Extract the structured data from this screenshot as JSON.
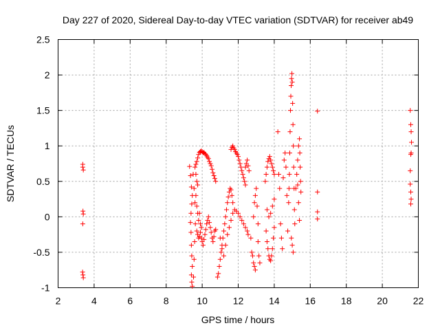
{
  "chart_data": {
    "type": "scatter",
    "title": "Day 227 of 2020, Sidereal Day-to-day VTEC variation (SDTVAR) for receiver ab49",
    "xlabel": "GPS time / hours",
    "ylabel": "SDTVAR / TECUs",
    "xlim": [
      2,
      22
    ],
    "ylim": [
      -1,
      2.5
    ],
    "xticks": [
      2,
      4,
      6,
      8,
      10,
      12,
      14,
      16,
      18,
      20,
      22
    ],
    "yticks": [
      -1,
      -0.5,
      0,
      0.5,
      1,
      1.5,
      2,
      2.5
    ],
    "xtick_labels": [
      "2",
      "4",
      "6",
      "8",
      "10",
      "12",
      "14",
      "16",
      "18",
      "20",
      "22"
    ],
    "ytick_labels": [
      "-1",
      "-0.5",
      "0",
      "0.5",
      "1",
      "1.5",
      "2",
      "2.5"
    ],
    "grid": true,
    "marker": "+",
    "series": [
      {
        "name": "SDTVAR",
        "color": "#ff0000",
        "points": [
          [
            3.37,
            0.74
          ],
          [
            3.37,
            0.7
          ],
          [
            3.4,
            0.66
          ],
          [
            3.38,
            0.08
          ],
          [
            3.4,
            0.04
          ],
          [
            3.37,
            -0.1
          ],
          [
            3.36,
            -0.78
          ],
          [
            3.38,
            -0.82
          ],
          [
            3.4,
            -0.86
          ],
          [
            9.3,
            0.71
          ],
          [
            9.35,
            0.58
          ],
          [
            9.4,
            0.42
          ],
          [
            9.45,
            0.3
          ],
          [
            9.42,
            0.18
          ],
          [
            9.38,
            0.05
          ],
          [
            9.35,
            -0.08
          ],
          [
            9.38,
            -0.22
          ],
          [
            9.4,
            -0.4
          ],
          [
            9.42,
            -0.55
          ],
          [
            9.45,
            -0.7
          ],
          [
            9.4,
            -0.82
          ],
          [
            9.42,
            -0.92
          ],
          [
            9.45,
            -0.98
          ],
          [
            9.5,
            0.6
          ],
          [
            9.55,
            0.4
          ],
          [
            9.6,
            0.2
          ],
          [
            9.62,
            -0.1
          ],
          [
            9.58,
            -0.35
          ],
          [
            9.55,
            -0.6
          ],
          [
            9.52,
            -0.85
          ],
          [
            9.65,
            0.74
          ],
          [
            9.7,
            0.78
          ],
          [
            9.75,
            0.83
          ],
          [
            9.8,
            0.88
          ],
          [
            9.85,
            0.91
          ],
          [
            9.9,
            0.92
          ],
          [
            9.95,
            0.93
          ],
          [
            10.0,
            0.92
          ],
          [
            10.05,
            0.9
          ],
          [
            10.1,
            0.91
          ],
          [
            10.15,
            0.89
          ],
          [
            10.2,
            0.88
          ],
          [
            10.25,
            0.86
          ],
          [
            10.3,
            0.84
          ],
          [
            10.35,
            0.82
          ],
          [
            10.4,
            0.78
          ],
          [
            10.45,
            0.75
          ],
          [
            10.5,
            0.72
          ],
          [
            10.55,
            0.67
          ],
          [
            10.6,
            0.62
          ],
          [
            10.65,
            0.58
          ],
          [
            10.7,
            0.54
          ],
          [
            10.75,
            0.5
          ],
          [
            9.7,
            -0.2
          ],
          [
            9.75,
            -0.25
          ],
          [
            9.8,
            -0.3
          ],
          [
            9.85,
            -0.28
          ],
          [
            9.9,
            -0.22
          ],
          [
            9.95,
            -0.3
          ],
          [
            10.0,
            -0.35
          ],
          [
            10.05,
            -0.4
          ],
          [
            10.1,
            -0.32
          ],
          [
            10.15,
            -0.25
          ],
          [
            10.2,
            -0.18
          ],
          [
            10.25,
            -0.1
          ],
          [
            10.3,
            -0.05
          ],
          [
            10.35,
            0.0
          ],
          [
            10.4,
            -0.08
          ],
          [
            10.45,
            -0.15
          ],
          [
            10.5,
            -0.22
          ],
          [
            10.55,
            -0.3
          ],
          [
            10.6,
            -0.35
          ],
          [
            10.65,
            -0.28
          ],
          [
            10.7,
            -0.2
          ],
          [
            10.75,
            -0.18
          ],
          [
            9.6,
            0.7
          ],
          [
            9.65,
            0.6
          ],
          [
            9.7,
            0.5
          ],
          [
            9.75,
            0.45
          ],
          [
            9.65,
            0.3
          ],
          [
            9.7,
            0.15
          ],
          [
            9.75,
            0.05
          ],
          [
            9.8,
            -0.05
          ],
          [
            9.85,
            0.05
          ],
          [
            9.9,
            -0.1
          ],
          [
            9.95,
            -0.15
          ],
          [
            10.85,
            -0.85
          ],
          [
            10.9,
            -0.8
          ],
          [
            10.95,
            -0.7
          ],
          [
            11.0,
            -0.6
          ],
          [
            11.05,
            -0.5
          ],
          [
            11.1,
            -0.4
          ],
          [
            11.15,
            -0.3
          ],
          [
            11.2,
            -0.2
          ],
          [
            11.25,
            -0.1
          ],
          [
            11.3,
            0.0
          ],
          [
            11.35,
            0.1
          ],
          [
            11.4,
            0.2
          ],
          [
            11.45,
            0.28
          ],
          [
            11.5,
            0.35
          ],
          [
            11.55,
            0.4
          ],
          [
            11.6,
            0.38
          ],
          [
            11.65,
            0.3
          ],
          [
            11.7,
            0.2
          ],
          [
            11.0,
            -0.3
          ],
          [
            11.1,
            -0.45
          ],
          [
            11.2,
            -0.55
          ],
          [
            11.3,
            -0.4
          ],
          [
            11.4,
            -0.25
          ],
          [
            11.5,
            -0.15
          ],
          [
            11.6,
            -0.05
          ],
          [
            11.7,
            0.05
          ],
          [
            11.8,
            0.1
          ],
          [
            11.9,
            0.08
          ],
          [
            12.0,
            0.05
          ],
          [
            12.1,
            0.0
          ],
          [
            12.2,
            -0.05
          ],
          [
            12.3,
            -0.1
          ],
          [
            12.4,
            -0.15
          ],
          [
            12.5,
            -0.2
          ],
          [
            12.55,
            -0.25
          ],
          [
            11.6,
            0.95
          ],
          [
            11.65,
            0.98
          ],
          [
            11.7,
            1.0
          ],
          [
            11.75,
            0.97
          ],
          [
            11.8,
            0.95
          ],
          [
            11.85,
            0.92
          ],
          [
            11.9,
            0.9
          ],
          [
            11.95,
            0.88
          ],
          [
            12.0,
            0.85
          ],
          [
            12.05,
            0.8
          ],
          [
            12.1,
            0.75
          ],
          [
            12.15,
            0.7
          ],
          [
            12.2,
            0.65
          ],
          [
            12.25,
            0.6
          ],
          [
            12.3,
            0.55
          ],
          [
            12.35,
            0.5
          ],
          [
            12.4,
            0.45
          ],
          [
            12.4,
            0.7
          ],
          [
            12.45,
            0.75
          ],
          [
            12.5,
            0.8
          ],
          [
            12.55,
            0.72
          ],
          [
            12.6,
            0.65
          ],
          [
            12.7,
            -0.3
          ],
          [
            12.75,
            -0.5
          ],
          [
            12.8,
            -0.55
          ],
          [
            12.85,
            -0.65
          ],
          [
            12.9,
            -0.7
          ],
          [
            12.95,
            -0.75
          ],
          [
            12.85,
            0.0
          ],
          [
            12.9,
            0.2
          ],
          [
            12.95,
            0.3
          ],
          [
            13.0,
            0.4
          ],
          [
            13.05,
            0.15
          ],
          [
            13.1,
            -0.1
          ],
          [
            13.1,
            -0.35
          ],
          [
            13.15,
            -0.55
          ],
          [
            13.2,
            -0.65
          ],
          [
            13.5,
            0.5
          ],
          [
            13.55,
            0.6
          ],
          [
            13.6,
            0.7
          ],
          [
            13.65,
            0.78
          ],
          [
            13.7,
            0.82
          ],
          [
            13.75,
            0.85
          ],
          [
            13.8,
            0.8
          ],
          [
            13.85,
            0.75
          ],
          [
            13.9,
            0.7
          ],
          [
            13.95,
            0.65
          ],
          [
            14.0,
            0.6
          ],
          [
            13.55,
            -0.2
          ],
          [
            13.6,
            -0.35
          ],
          [
            13.65,
            -0.45
          ],
          [
            13.7,
            -0.55
          ],
          [
            13.75,
            -0.6
          ],
          [
            13.8,
            -0.62
          ],
          [
            13.85,
            -0.55
          ],
          [
            13.9,
            -0.45
          ],
          [
            13.95,
            -0.3
          ],
          [
            14.0,
            -0.15
          ],
          [
            13.6,
            0.1
          ],
          [
            13.7,
            0.0
          ],
          [
            13.8,
            0.05
          ],
          [
            13.9,
            0.15
          ],
          [
            14.0,
            0.25
          ],
          [
            14.2,
            1.2
          ],
          [
            14.25,
            0.6
          ],
          [
            14.3,
            0.4
          ],
          [
            14.35,
            -0.1
          ],
          [
            14.4,
            -0.3
          ],
          [
            14.45,
            -0.45
          ],
          [
            14.5,
            0.55
          ],
          [
            14.55,
            0.8
          ],
          [
            14.6,
            0.9
          ],
          [
            14.65,
            0.7
          ],
          [
            14.7,
            0.3
          ],
          [
            14.75,
            -0.2
          ],
          [
            14.8,
            0.2
          ],
          [
            14.82,
            0.4
          ],
          [
            14.84,
            0.6
          ],
          [
            14.86,
            0.9
          ],
          [
            14.88,
            1.2
          ],
          [
            14.9,
            1.5
          ],
          [
            14.92,
            1.7
          ],
          [
            14.94,
            1.85
          ],
          [
            14.96,
            1.95
          ],
          [
            14.98,
            2.02
          ],
          [
            15.0,
            1.9
          ],
          [
            15.02,
            1.6
          ],
          [
            15.04,
            1.3
          ],
          [
            15.06,
            1.0
          ],
          [
            15.08,
            0.7
          ],
          [
            15.1,
            0.4
          ],
          [
            15.12,
            0.1
          ],
          [
            15.14,
            -0.1
          ],
          [
            14.95,
            -0.3
          ],
          [
            15.0,
            -0.4
          ],
          [
            15.05,
            -0.5
          ],
          [
            15.2,
            0.4
          ],
          [
            15.25,
            0.6
          ],
          [
            15.3,
            0.8
          ],
          [
            15.35,
            1.0
          ],
          [
            15.4,
            1.1
          ],
          [
            15.42,
            0.9
          ],
          [
            15.44,
            0.7
          ],
          [
            15.46,
            0.5
          ],
          [
            15.48,
            0.35
          ],
          [
            15.4,
            -0.05
          ],
          [
            15.35,
            0.2
          ],
          [
            15.3,
            0.45
          ],
          [
            16.4,
            1.49
          ],
          [
            16.4,
            0.35
          ],
          [
            16.4,
            0.07
          ],
          [
            16.4,
            -0.03
          ],
          [
            21.55,
            1.5
          ],
          [
            21.58,
            1.3
          ],
          [
            21.6,
            1.2
          ],
          [
            21.62,
            1.05
          ],
          [
            21.6,
            0.9
          ],
          [
            21.58,
            0.88
          ],
          [
            21.55,
            0.65
          ],
          [
            21.55,
            0.46
          ],
          [
            21.58,
            0.35
          ],
          [
            21.6,
            0.25
          ],
          [
            21.58,
            0.18
          ]
        ]
      }
    ]
  }
}
